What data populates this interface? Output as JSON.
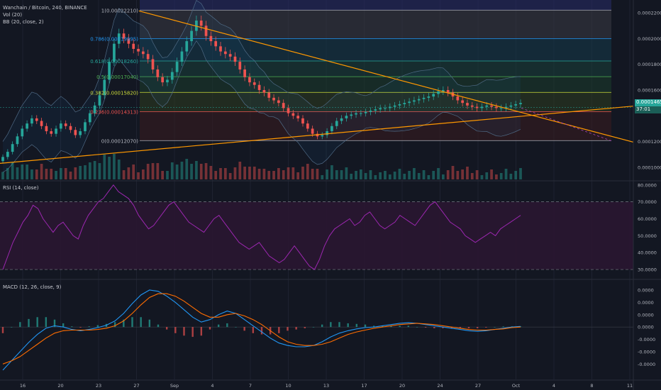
{
  "header": {
    "symbol_line": "Wanchain / Bitcoin, 240, BINANCE",
    "vol_label": "Vol (20)",
    "bb_label": "BB (20, close, 2)"
  },
  "price_axis": {
    "labels": [
      "0.00022000",
      "0.00020000",
      "0.00018000",
      "0.00016000",
      "0.00012000",
      "0.00010000"
    ],
    "current_price": "0.0001465",
    "countdown": "37:01"
  },
  "rsi": {
    "label": "RSI (14, close)",
    "axis_labels": [
      "80.0000",
      "70.0000",
      "60.0000",
      "50.0000",
      "40.0000",
      "30.0000"
    ]
  },
  "macd": {
    "label": "MACD (12, 26, close, 9)",
    "axis_labels": [
      "0.0000",
      "0.0000",
      "0.0000",
      "0.0000",
      "-0.0000",
      "-0.0000",
      "-0.0000"
    ]
  },
  "time_axis": {
    "labels": [
      "16",
      "20",
      "23",
      "27",
      "Sep",
      "4",
      "7",
      "10",
      "13",
      "17",
      "20",
      "24",
      "27",
      "Oct",
      "4",
      "8",
      "11"
    ]
  },
  "colors": {
    "background": "#131722",
    "bull": "#26a69a",
    "bear": "#ef5350",
    "trendline": "#ff9800",
    "rsi_line": "#9c27b0",
    "macd_line": "#2196f3",
    "signal_line": "#ff6d00"
  },
  "chart_data": [
    {
      "type": "candlestick",
      "title": "Wanchain / Bitcoin, 240, BINANCE",
      "fib_levels": [
        {
          "ratio": "1",
          "price": "0.00022210",
          "label": "1(0.00022210)"
        },
        {
          "ratio": "0.786",
          "price": "0.00019995",
          "label": "0.786(0.00019995)"
        },
        {
          "ratio": "0.618",
          "price": "0.00018260",
          "label": "0.618(0.00018260)"
        },
        {
          "ratio": "0.5",
          "price": "0.00017040",
          "label": "0.5(0.00017040)"
        },
        {
          "ratio": "0.382",
          "price": "0.00015820",
          "label": "0.382(0.00015820)"
        },
        {
          "ratio": "0.236",
          "price": "0.00014313",
          "label": "0.236(0.00014313)"
        },
        {
          "ratio": "0",
          "price": "0.00012070",
          "label": "0(0.00012070)"
        }
      ],
      "ylim": [
        9e-05,
        0.00023
      ],
      "current_price": 0.0001465,
      "close_path": [
        0.000108,
        0.000112,
        0.000118,
        0.000124,
        0.00013,
        0.000134,
        0.000138,
        0.000136,
        0.000132,
        0.000128,
        0.000126,
        0.00013,
        0.000134,
        0.000132,
        0.000129,
        0.000125,
        0.000128,
        0.000135,
        0.000142,
        0.000148,
        0.000156,
        0.000168,
        0.000182,
        0.000196,
        0.000204,
        0.0002,
        0.000196,
        0.000192,
        0.00019,
        0.000188,
        0.000184,
        0.000176,
        0.00017,
        0.000166,
        0.000168,
        0.000174,
        0.000182,
        0.00019,
        0.000198,
        0.000206,
        0.000214,
        0.00021,
        0.000202,
        0.000198,
        0.000194,
        0.00019,
        0.000188,
        0.000186,
        0.000182,
        0.000176,
        0.00017,
        0.000166,
        0.000164,
        0.00016,
        0.000158,
        0.000154,
        0.000152,
        0.00015,
        0.000146,
        0.000142,
        0.00014,
        0.000138,
        0.000134,
        0.00013,
        0.000126,
        0.000124,
        0.000125,
        0.000128,
        0.000132,
        0.000136,
        0.000138,
        0.00014,
        0.000141,
        0.000142,
        0.000142,
        0.000143,
        0.000144,
        0.000145,
        0.000146,
        0.000146,
        0.000147,
        0.000148,
        0.000149,
        0.00015,
        0.000151,
        0.000152,
        0.000153,
        0.000154,
        0.000155,
        0.000157,
        0.000159,
        0.00016,
        0.000158,
        0.000155,
        0.000152,
        0.00015,
        0.000148,
        0.000147,
        0.000146,
        0.000147,
        0.000148,
        0.000147,
        0.000146,
        0.000146,
        0.000147,
        0.000148,
        0.000149,
        0.00015
      ]
    },
    {
      "type": "line",
      "title": "RSI (14, close)",
      "ylim": [
        25,
        82
      ],
      "levels": [
        70,
        30
      ],
      "values": [
        30,
        38,
        46,
        52,
        58,
        62,
        68,
        66,
        60,
        56,
        52,
        56,
        58,
        54,
        50,
        48,
        56,
        62,
        66,
        70,
        72,
        76,
        80,
        76,
        74,
        72,
        68,
        62,
        58,
        54,
        56,
        60,
        64,
        68,
        70,
        66,
        62,
        58,
        56,
        54,
        52,
        56,
        60,
        62,
        58,
        54,
        50,
        46,
        44,
        42,
        44,
        46,
        42,
        38,
        36,
        34,
        36,
        40,
        44,
        40,
        36,
        32,
        30,
        36,
        44,
        50,
        54,
        56,
        58,
        60,
        56,
        58,
        62,
        64,
        60,
        56,
        54,
        56,
        58,
        62,
        60,
        58,
        56,
        60,
        64,
        68,
        70,
        66,
        62,
        58,
        56,
        54,
        50,
        48,
        46,
        48,
        50,
        52,
        50,
        54,
        56,
        58,
        60,
        62
      ]
    },
    {
      "type": "line",
      "title": "MACD (12, 26, close, 9)",
      "ylim": [
        -8.5e-06,
        7.5e-06
      ],
      "series": [
        {
          "role": "macd",
          "values": [
            -7e-06,
            -5.5e-06,
            -4e-06,
            -2.5e-06,
            -1.2e-06,
            -2e-07,
            2e-07,
            0.0,
            -4e-07,
            -6e-07,
            -4e-07,
            -1e-07,
            3e-07,
            1e-06,
            2.2e-06,
            3.8e-06,
            5.2e-06,
            6e-06,
            5.8e-06,
            5e-06,
            4e-06,
            2.8e-06,
            1.6e-06,
            8e-07,
            1.2e-06,
            2e-06,
            2.6e-06,
            2.2e-06,
            1.2e-06,
            2e-07,
            -8e-07,
            -1.8e-06,
            -2.6e-06,
            -3e-06,
            -3.2e-06,
            -3.2e-06,
            -3e-06,
            -2.4e-06,
            -1.6e-06,
            -1e-06,
            -6e-07,
            -3e-07,
            -1e-07,
            0.0,
            2e-07,
            4e-07,
            6e-07,
            7e-07,
            6e-07,
            4e-07,
            2e-07,
            0.0,
            -2e-07,
            -4e-07,
            -6e-07,
            -7e-07,
            -6e-07,
            -4e-07,
            -2e-07,
            0.0,
            1e-07
          ]
        },
        {
          "role": "signal",
          "values": [
            -6e-06,
            -5.5e-06,
            -4.8e-06,
            -3.8e-06,
            -2.8e-06,
            -1.8e-06,
            -1e-06,
            -6e-07,
            -5e-07,
            -5e-07,
            -5e-07,
            -4e-07,
            -2e-07,
            2e-07,
            1e-06,
            2.2e-06,
            3.6e-06,
            4.8e-06,
            5.4e-06,
            5.4e-06,
            5e-06,
            4.2e-06,
            3.2e-06,
            2.2e-06,
            1.6e-06,
            1.6e-06,
            2e-06,
            2.2e-06,
            1.8e-06,
            1.2e-06,
            4e-07,
            -6e-07,
            -1.6e-06,
            -2.4e-06,
            -2.8e-06,
            -3e-06,
            -3e-06,
            -2.8e-06,
            -2.4e-06,
            -1.8e-06,
            -1.2e-06,
            -8e-07,
            -5e-07,
            -2e-07,
            0.0,
            2e-07,
            4e-07,
            5e-07,
            6e-07,
            5e-07,
            4e-07,
            2e-07,
            0.0,
            -2e-07,
            -4e-07,
            -5e-07,
            -5e-07,
            -4e-07,
            -3e-07,
            -1e-07,
            0.0
          ]
        }
      ]
    }
  ]
}
